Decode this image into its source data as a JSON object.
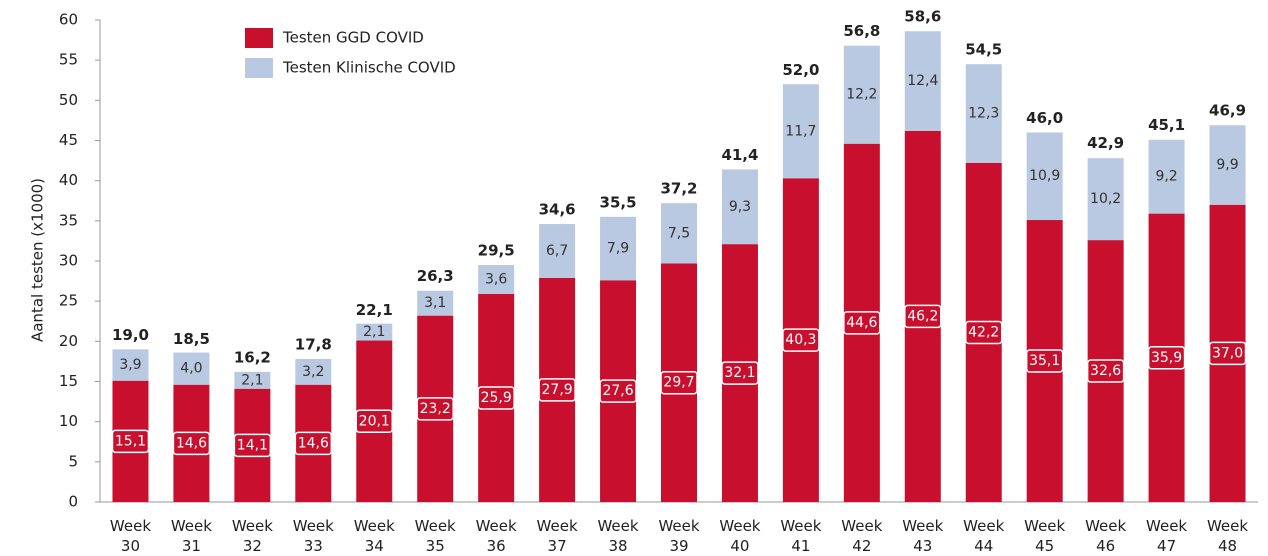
{
  "chart_data": {
    "type": "stacked-bar",
    "y_label": "Aantal testen (x1000)",
    "categories": [
      "Week 30",
      "Week 31",
      "Week 32",
      "Week 33",
      "Week 34",
      "Week 35",
      "Week 36",
      "Week 37",
      "Week 38",
      "Week 39",
      "Week 40",
      "Week 41",
      "Week 42",
      "Week 43",
      "Week 44",
      "Week 45",
      "Week 46",
      "Week 47",
      "Week 48"
    ],
    "series": [
      {
        "name": "Testen GGD COVID",
        "color": "#c8102e",
        "values": [
          15.1,
          14.6,
          14.1,
          14.6,
          20.1,
          23.2,
          25.9,
          27.9,
          27.6,
          29.7,
          32.1,
          40.3,
          44.6,
          46.2,
          42.2,
          35.1,
          32.6,
          35.9,
          37.0
        ],
        "value_labels": [
          "15,1",
          "14,6",
          "14,1",
          "14,6",
          "20,1",
          "23,2",
          "25,9",
          "27,9",
          "27,6",
          "29,7",
          "32,1",
          "40,3",
          "44,6",
          "46,2",
          "42,2",
          "35,1",
          "32,6",
          "35,9",
          "37,0"
        ]
      },
      {
        "name": "Testen Klinische COVID",
        "color": "#b9c9e1",
        "values": [
          3.9,
          4.0,
          2.1,
          3.2,
          2.1,
          3.1,
          3.6,
          6.7,
          7.9,
          7.5,
          9.3,
          11.7,
          12.2,
          12.4,
          12.3,
          10.9,
          10.2,
          9.2,
          9.9
        ],
        "value_labels": [
          "3,9",
          "4,0",
          "2,1",
          "3,2",
          "2,1",
          "3,1",
          "3,6",
          "6,7",
          "7,9",
          "7,5",
          "9,3",
          "11,7",
          "12,2",
          "12,4",
          "12,3",
          "10,9",
          "10,2",
          "9,2",
          "9,9"
        ]
      }
    ],
    "totals": {
      "values": [
        19.0,
        18.5,
        16.2,
        17.8,
        22.1,
        26.3,
        29.5,
        34.6,
        35.5,
        37.2,
        41.4,
        52.0,
        56.8,
        58.6,
        54.5,
        46.0,
        42.9,
        45.1,
        46.9
      ],
      "value_labels": [
        "19,0",
        "18,5",
        "16,2",
        "17,8",
        "22,1",
        "26,3",
        "29,5",
        "34,6",
        "35,5",
        "37,2",
        "41,4",
        "52,0",
        "56,8",
        "58,6",
        "54,5",
        "46,0",
        "42,9",
        "45,1",
        "46,9"
      ]
    },
    "ylim": [
      0,
      60
    ],
    "yticks": [
      0,
      5,
      10,
      15,
      20,
      25,
      30,
      35,
      40,
      45,
      50,
      55,
      60
    ],
    "grid": false
  }
}
